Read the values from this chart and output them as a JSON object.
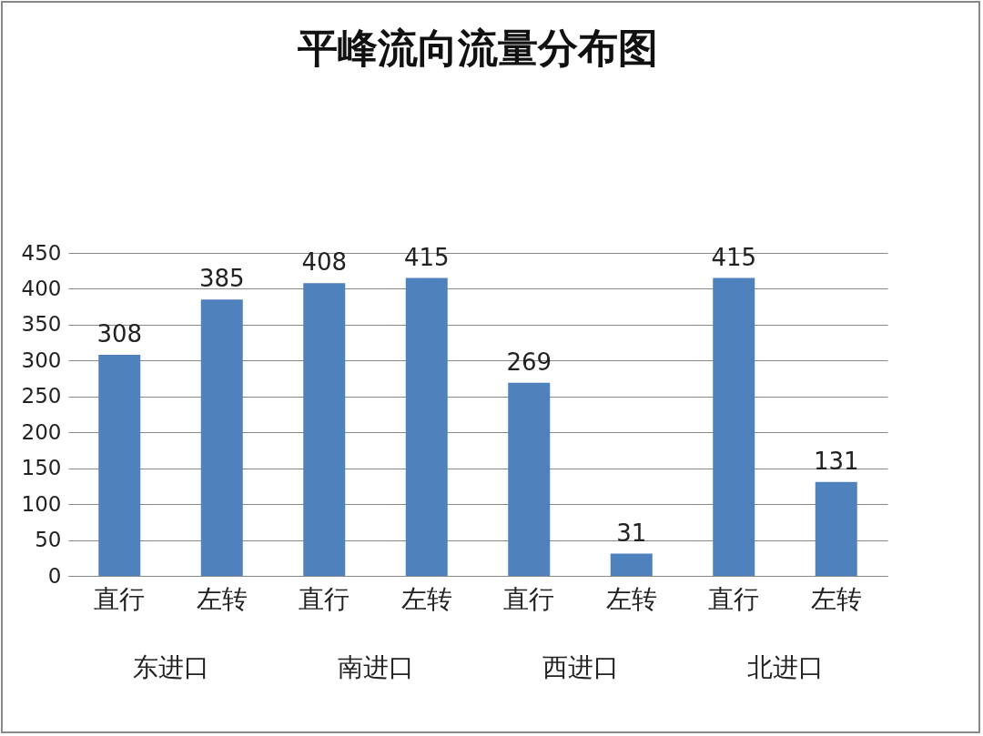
{
  "chart_data": {
    "type": "bar",
    "title": "平峰流向流量分布图",
    "categories": [
      "直行",
      "左转",
      "直行",
      "左转",
      "直行",
      "左转",
      "直行",
      "左转"
    ],
    "values": [
      308,
      385,
      408,
      415,
      269,
      31,
      415,
      131
    ],
    "color": "#4f81bd",
    "ylim": [
      0,
      450
    ],
    "yticks": [
      0,
      50,
      100,
      150,
      200,
      250,
      300,
      350,
      400,
      450
    ],
    "grid": "y",
    "data_labels": true,
    "annotations": [
      "东进口",
      "南进口",
      "西进口",
      "北进口"
    ]
  }
}
